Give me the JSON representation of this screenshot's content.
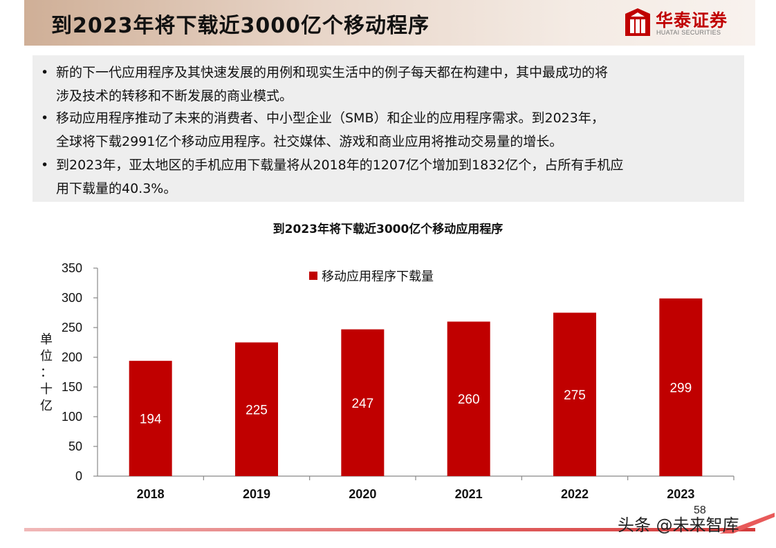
{
  "header": {
    "title": "到2023年将下载近3000亿个移动程序",
    "logo_cn": "华泰证券",
    "logo_en": "HUATAI SECURITIES",
    "brand_color": "#c00000"
  },
  "bullets": [
    {
      "line1": "新的下一代应用程序及其快速发展的用例和现实生活中的例子每天都在构建中，其中最成功的将",
      "line2": "涉及技术的转移和不断发展的商业模式。"
    },
    {
      "line1": "移动应用程序推动了未来的消费者、中小型企业（SMB）和企业的应用程序需求。到2023年，",
      "line2": "全球将下载2991亿个移动应用程序。社交媒体、游戏和商业应用将推动交易量的增长。"
    },
    {
      "line1": "到2023年，亚太地区的手机应用下载量将从2018年的1207亿个增加到1832亿个，占所有手机应",
      "line2": "用下载量的40.3%。"
    }
  ],
  "bullet_symbol": "•",
  "chart_data": {
    "type": "bar",
    "title": "到2023年将下载近3000亿个移动应用程序",
    "categories": [
      "2018",
      "2019",
      "2020",
      "2021",
      "2022",
      "2023"
    ],
    "series": [
      {
        "name": "移动应用程序下载量",
        "values": [
          194,
          225,
          247,
          260,
          275,
          299
        ],
        "color": "#c00000"
      }
    ],
    "ylabel": "单位：十亿",
    "ylabel_chars": [
      "单",
      "位",
      "：",
      "十",
      "亿"
    ],
    "ylim": [
      0,
      350
    ],
    "yticks": [
      0,
      50,
      100,
      150,
      200,
      250,
      300,
      350
    ],
    "grid": false,
    "legend_position": "top-center"
  },
  "footer": {
    "page_number": "58",
    "watermark": "头条 @未来智库"
  }
}
